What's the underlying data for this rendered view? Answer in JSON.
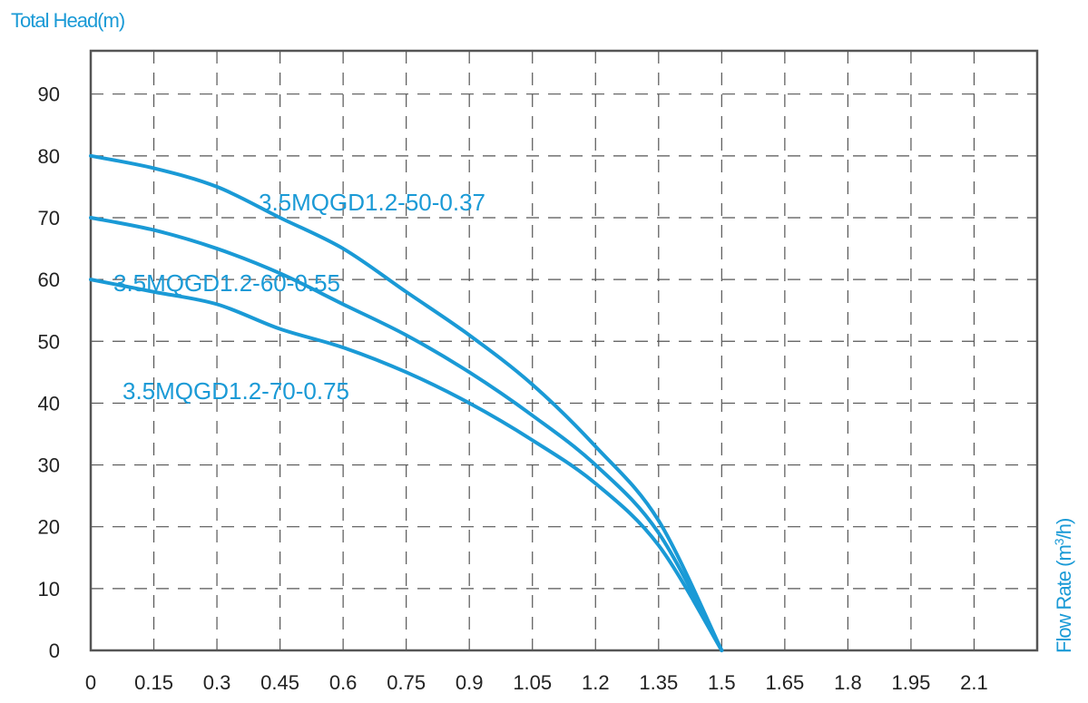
{
  "chart_data": {
    "type": "line",
    "ylabel": "Total Head(m)",
    "xlabel_parts": [
      "Flow Rate (m",
      "3",
      "/h)"
    ],
    "xlim": [
      0,
      2.25
    ],
    "ylim": [
      0,
      97
    ],
    "x_ticks": [
      "0",
      "0.15",
      "0.3",
      "0.45",
      "0.6",
      "0.75",
      "0.9",
      "1.05",
      "1.2",
      "1.35",
      "1.5",
      "1.65",
      "1.8",
      "1.95",
      "2.1"
    ],
    "y_ticks": [
      "0",
      "10",
      "20",
      "30",
      "40",
      "50",
      "60",
      "70",
      "80",
      "90"
    ],
    "grid": true,
    "line_color": "#1a9ad6",
    "series": [
      {
        "name": "3.5MQGD1.2-50-0.37",
        "x": [
          0,
          0.15,
          0.3,
          0.45,
          0.6,
          0.75,
          0.9,
          1.05,
          1.2,
          1.35,
          1.5
        ],
        "y": [
          80,
          78,
          75,
          70,
          65,
          58,
          51,
          43,
          33,
          21,
          0
        ]
      },
      {
        "name": "3.5MQGD1.2-60-0.55",
        "x": [
          0,
          0.15,
          0.3,
          0.45,
          0.6,
          0.75,
          0.9,
          1.05,
          1.2,
          1.35,
          1.5
        ],
        "y": [
          70,
          68,
          65,
          61,
          56,
          51,
          45,
          38,
          30,
          19,
          0
        ]
      },
      {
        "name": "3.5MQGD1.2-70-0.75",
        "x": [
          0,
          0.15,
          0.3,
          0.45,
          0.6,
          0.75,
          0.9,
          1.05,
          1.2,
          1.35,
          1.5
        ],
        "y": [
          60,
          58,
          56,
          52,
          49,
          45,
          40,
          34,
          27,
          17,
          0
        ]
      }
    ]
  }
}
